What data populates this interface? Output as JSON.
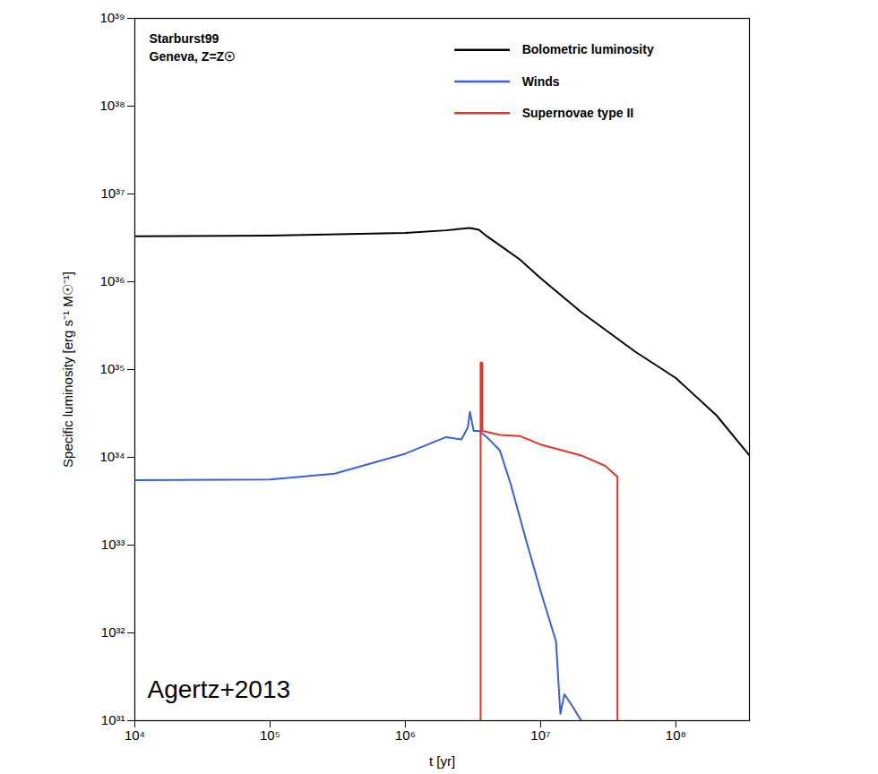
{
  "chart_data": {
    "type": "line",
    "log": true,
    "grid": false,
    "legend": "upper right",
    "xlabel": "t [yr]",
    "ylabel": "Specific luminosity [erg s⁻¹ M☉⁻¹]",
    "annotations": [
      "Starburst99",
      "Geneva, Z=Z☉",
      "Agertz+2013"
    ],
    "xlim": [
      10000,
      350000000
    ],
    "ylim": [
      1e+31,
      1e+39
    ],
    "xticks": [
      {
        "value": 10000,
        "label": "10⁴"
      },
      {
        "value": 100000,
        "label": "10⁵"
      },
      {
        "value": 1000000,
        "label": "10⁶"
      },
      {
        "value": 10000000,
        "label": "10⁷"
      },
      {
        "value": 100000000,
        "label": "10⁸"
      }
    ],
    "yticks": [
      {
        "value": 1e+31,
        "label": "10³¹"
      },
      {
        "value": 1e+32,
        "label": "10³²"
      },
      {
        "value": 1e+33,
        "label": "10³³"
      },
      {
        "value": 1e+34,
        "label": "10³⁴"
      },
      {
        "value": 1e+35,
        "label": "10³⁵"
      },
      {
        "value": 1e+36,
        "label": "10³⁶"
      },
      {
        "value": 1e+37,
        "label": "10³⁷"
      },
      {
        "value": 1e+38,
        "label": "10³⁸"
      },
      {
        "value": 1e+39,
        "label": "10³⁹"
      }
    ],
    "series": [
      {
        "name": "Bolometric luminosity",
        "color": "#000000",
        "x": [
          10000,
          100000,
          1000000,
          2000000,
          3000000,
          3500000,
          4000000,
          5000000,
          7000000,
          10000000,
          20000000,
          50000000,
          100000000,
          200000000,
          350000000
        ],
        "values": [
          3.3e+36,
          3.35e+36,
          3.6e+36,
          3.85e+36,
          4.1e+36,
          3.9e+36,
          3.3e+36,
          2.6e+36,
          1.8e+36,
          1.1e+36,
          4.5e+35,
          1.6e+35,
          8e+34,
          3e+34,
          1.05e+34
        ]
      },
      {
        "name": "Winds",
        "color": "#3a5fe0",
        "x": [
          10000,
          100000,
          300000,
          1000000,
          2000000,
          2600000,
          2900000,
          3000000,
          3200000,
          3500000,
          4000000,
          5000000,
          6000000,
          8000000,
          10000000,
          13000000,
          14000000,
          15000000,
          17000000,
          20000000
        ],
        "values": [
          5.5e+33,
          5.6e+33,
          6.5e+33,
          1.1e+34,
          1.7e+34,
          1.6e+34,
          2.2e+34,
          3.3e+34,
          2e+34,
          2e+34,
          1.7e+34,
          1.2e+34,
          5e+33,
          1e+33,
          3e+32,
          8e+31,
          1.2e+31,
          2e+31,
          1.5e+31,
          1e+31
        ]
      },
      {
        "name": "Supernovae type II",
        "color": "#e8332a",
        "x": [
          3600000,
          3600000,
          3700000,
          3700000,
          5000000,
          7000000,
          10000000,
          20000000,
          30000000,
          37000000,
          37000000
        ],
        "values": [
          1e+31,
          1.2e+35,
          1.2e+35,
          2e+34,
          1.8e+34,
          1.75e+34,
          1.4e+34,
          1.05e+34,
          8e+33,
          6e+33,
          1e+31
        ]
      }
    ]
  }
}
